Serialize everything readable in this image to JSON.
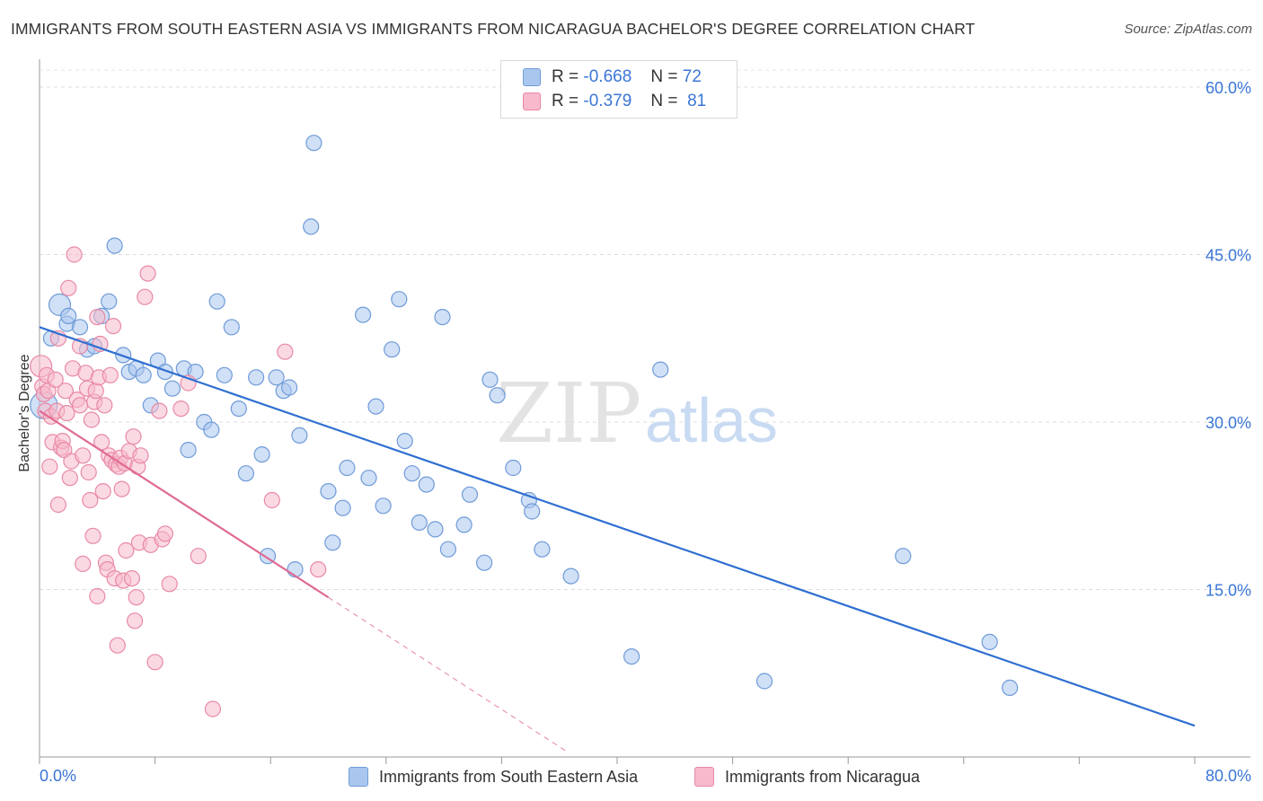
{
  "title": "IMMIGRANTS FROM SOUTH EASTERN ASIA VS IMMIGRANTS FROM NICARAGUA BACHELOR'S DEGREE CORRELATION CHART",
  "source": "Source: ZipAtlas.com",
  "watermark": {
    "zip": "ZIP",
    "atlas": "atlas"
  },
  "legend_top": [
    {
      "r_label": "R =",
      "r_value": "-0.668",
      "n_label": "N =",
      "n_value": "72",
      "color": "#a9c7ee",
      "border": "#6f9bd8"
    },
    {
      "r_label": "R =",
      "r_value": "-0.379",
      "n_label": "N =",
      "n_value": "81",
      "color": "#f7b9cb",
      "border": "#e889a6"
    }
  ],
  "chart_data": {
    "type": "scatter",
    "title": "IMMIGRANTS FROM SOUTH EASTERN ASIA VS IMMIGRANTS FROM NICARAGUA BACHELOR'S DEGREE CORRELATION CHART",
    "xlabel": "",
    "ylabel": "Bachelor's Degree",
    "xlim": [
      0,
      80
    ],
    "ylim": [
      0,
      60
    ],
    "x_tick_labels": [
      "0.0%",
      "80.0%"
    ],
    "y_ticks": [
      15,
      30,
      45,
      60
    ],
    "y_tick_labels": [
      "15.0%",
      "30.0%",
      "45.0%",
      "60.0%"
    ],
    "grid": true,
    "legend_position": "top-center",
    "series": [
      {
        "name": "Immigrants from South Eastern Asia",
        "color": "#a9c7ee",
        "stroke": "#6f9bd8",
        "line_color": "#2f6fd1",
        "r": -0.668,
        "n": 72,
        "trend": {
          "x": [
            0,
            80
          ],
          "y": [
            38.5,
            2.8
          ]
        },
        "points": [
          [
            0.3,
            31.5
          ],
          [
            0.8,
            37.5
          ],
          [
            1.4,
            40.5
          ],
          [
            1.9,
            38.8
          ],
          [
            2.0,
            39.5
          ],
          [
            2.8,
            38.5
          ],
          [
            3.3,
            36.5
          ],
          [
            3.8,
            36.8
          ],
          [
            4.3,
            39.5
          ],
          [
            4.8,
            40.8
          ],
          [
            5.2,
            45.8
          ],
          [
            5.8,
            36.0
          ],
          [
            6.2,
            34.5
          ],
          [
            6.7,
            34.8
          ],
          [
            7.2,
            34.2
          ],
          [
            7.7,
            31.5
          ],
          [
            8.2,
            35.5
          ],
          [
            8.7,
            34.5
          ],
          [
            9.2,
            33.0
          ],
          [
            10.0,
            34.8
          ],
          [
            10.3,
            27.5
          ],
          [
            10.8,
            34.5
          ],
          [
            11.4,
            30.0
          ],
          [
            11.9,
            29.3
          ],
          [
            12.3,
            40.8
          ],
          [
            12.8,
            34.2
          ],
          [
            13.3,
            38.5
          ],
          [
            13.8,
            31.2
          ],
          [
            14.3,
            25.4
          ],
          [
            15.0,
            34.0
          ],
          [
            15.4,
            27.1
          ],
          [
            15.8,
            18.0
          ],
          [
            16.4,
            34.0
          ],
          [
            16.9,
            32.8
          ],
          [
            17.3,
            33.1
          ],
          [
            17.7,
            16.8
          ],
          [
            18.0,
            28.8
          ],
          [
            18.8,
            47.5
          ],
          [
            19.0,
            55.0
          ],
          [
            20.0,
            23.8
          ],
          [
            20.3,
            19.2
          ],
          [
            21.0,
            22.3
          ],
          [
            21.3,
            25.9
          ],
          [
            22.4,
            39.6
          ],
          [
            22.8,
            25.0
          ],
          [
            23.3,
            31.4
          ],
          [
            23.8,
            22.5
          ],
          [
            24.4,
            36.5
          ],
          [
            24.9,
            41.0
          ],
          [
            25.3,
            28.3
          ],
          [
            25.8,
            25.4
          ],
          [
            26.3,
            21.0
          ],
          [
            26.8,
            24.4
          ],
          [
            27.4,
            20.4
          ],
          [
            27.9,
            39.4
          ],
          [
            28.3,
            18.6
          ],
          [
            29.4,
            20.8
          ],
          [
            29.8,
            23.5
          ],
          [
            30.8,
            17.4
          ],
          [
            31.2,
            33.8
          ],
          [
            31.7,
            32.4
          ],
          [
            32.8,
            25.9
          ],
          [
            33.9,
            23.0
          ],
          [
            34.1,
            22.0
          ],
          [
            34.8,
            18.6
          ],
          [
            36.8,
            16.2
          ],
          [
            41.0,
            9.0
          ],
          [
            43.0,
            34.7
          ],
          [
            50.2,
            6.8
          ],
          [
            59.8,
            18.0
          ],
          [
            65.8,
            10.3
          ],
          [
            67.2,
            6.2
          ]
        ]
      },
      {
        "name": "Immigrants from Nicaragua",
        "color": "#f7b9cb",
        "stroke": "#e889a6",
        "line_color": "#e06a92",
        "r": -0.379,
        "n": 81,
        "trend": {
          "x": [
            0,
            20
          ],
          "y": [
            31.0,
            14.3
          ]
        },
        "trend_dashed": {
          "x": [
            20,
            36.5
          ],
          "y": [
            14.3,
            0.5
          ]
        },
        "points": [
          [
            0.1,
            35.0
          ],
          [
            0.2,
            33.2
          ],
          [
            0.3,
            32.5
          ],
          [
            0.4,
            31.0
          ],
          [
            0.5,
            34.2
          ],
          [
            0.6,
            32.8
          ],
          [
            0.7,
            26.0
          ],
          [
            0.8,
            30.5
          ],
          [
            0.9,
            28.2
          ],
          [
            1.1,
            33.8
          ],
          [
            1.2,
            31.0
          ],
          [
            1.3,
            37.5
          ],
          [
            1.3,
            22.6
          ],
          [
            1.5,
            27.7
          ],
          [
            1.6,
            28.3
          ],
          [
            1.7,
            27.5
          ],
          [
            1.8,
            32.8
          ],
          [
            1.9,
            30.8
          ],
          [
            2.0,
            42.0
          ],
          [
            2.1,
            25.0
          ],
          [
            2.2,
            26.5
          ],
          [
            2.3,
            34.8
          ],
          [
            2.4,
            45.0
          ],
          [
            2.6,
            32.0
          ],
          [
            2.8,
            36.8
          ],
          [
            2.8,
            31.5
          ],
          [
            3.0,
            27.0
          ],
          [
            3.0,
            17.3
          ],
          [
            3.2,
            34.4
          ],
          [
            3.3,
            33.0
          ],
          [
            3.4,
            25.5
          ],
          [
            3.5,
            23.0
          ],
          [
            3.6,
            30.2
          ],
          [
            3.7,
            19.8
          ],
          [
            3.8,
            31.8
          ],
          [
            3.9,
            32.8
          ],
          [
            4.0,
            14.4
          ],
          [
            4.1,
            34.0
          ],
          [
            4.2,
            37.0
          ],
          [
            4.3,
            28.2
          ],
          [
            4.4,
            23.8
          ],
          [
            4.5,
            31.5
          ],
          [
            4.6,
            17.4
          ],
          [
            4.7,
            16.8
          ],
          [
            4.8,
            27.0
          ],
          [
            4.9,
            34.2
          ],
          [
            5.0,
            26.6
          ],
          [
            5.1,
            38.6
          ],
          [
            5.2,
            16.0
          ],
          [
            5.3,
            26.2
          ],
          [
            5.4,
            10.0
          ],
          [
            5.5,
            26.0
          ],
          [
            5.6,
            26.8
          ],
          [
            5.7,
            24.0
          ],
          [
            5.8,
            15.8
          ],
          [
            5.9,
            26.3
          ],
          [
            6.0,
            18.5
          ],
          [
            6.2,
            27.4
          ],
          [
            6.4,
            16.0
          ],
          [
            6.5,
            28.7
          ],
          [
            6.6,
            12.2
          ],
          [
            6.7,
            14.3
          ],
          [
            6.8,
            26.0
          ],
          [
            6.9,
            19.2
          ],
          [
            7.0,
            27.0
          ],
          [
            7.3,
            41.2
          ],
          [
            7.5,
            43.3
          ],
          [
            7.7,
            19.0
          ],
          [
            8.0,
            8.5
          ],
          [
            8.3,
            31.0
          ],
          [
            8.5,
            19.5
          ],
          [
            8.7,
            20.0
          ],
          [
            9.0,
            15.5
          ],
          [
            9.8,
            31.2
          ],
          [
            10.3,
            33.5
          ],
          [
            11.0,
            18.0
          ],
          [
            12.0,
            4.3
          ],
          [
            16.1,
            23.0
          ],
          [
            17.0,
            36.3
          ],
          [
            19.3,
            16.8
          ],
          [
            4.0,
            39.4
          ]
        ]
      }
    ]
  }
}
